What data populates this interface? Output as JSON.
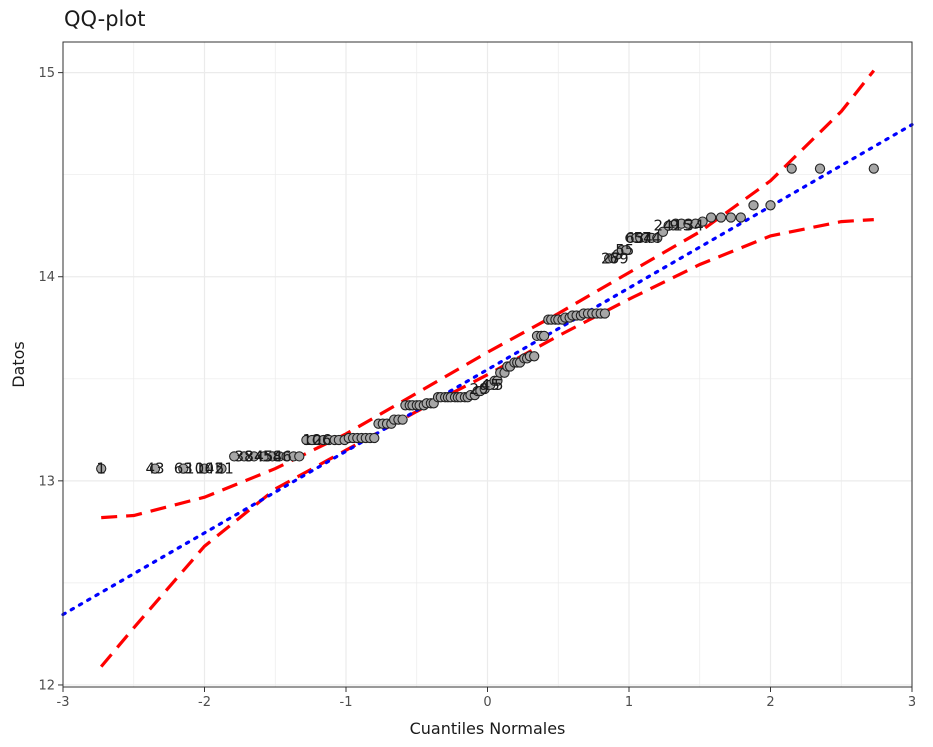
{
  "chart_data": {
    "type": "scatter",
    "title": "QQ-plot",
    "xlabel": "Cuantiles Normales",
    "ylabel": "Datos",
    "xlim": [
      -3,
      3
    ],
    "ylim": [
      11.99,
      15.15
    ],
    "x_ticks": [
      "-3",
      "-2",
      "-1",
      "0",
      "1",
      "2",
      "3"
    ],
    "y_ticks": [
      "12",
      "13",
      "14",
      "15"
    ],
    "grid": true,
    "points": [
      {
        "x": -2.73,
        "y": 13.06
      },
      {
        "x": -2.35,
        "y": 13.06
      },
      {
        "x": -2.15,
        "y": 13.06
      },
      {
        "x": -2.0,
        "y": 13.06
      },
      {
        "x": -1.88,
        "y": 13.06
      },
      {
        "x": -1.79,
        "y": 13.12
      },
      {
        "x": -1.72,
        "y": 13.12
      },
      {
        "x": -1.65,
        "y": 13.12
      },
      {
        "x": -1.58,
        "y": 13.12
      },
      {
        "x": -1.52,
        "y": 13.12
      },
      {
        "x": -1.47,
        "y": 13.12
      },
      {
        "x": -1.42,
        "y": 13.12
      },
      {
        "x": -1.37,
        "y": 13.12
      },
      {
        "x": -1.33,
        "y": 13.12
      },
      {
        "x": -1.28,
        "y": 13.2
      },
      {
        "x": -1.24,
        "y": 13.2
      },
      {
        "x": -1.2,
        "y": 13.2
      },
      {
        "x": -1.16,
        "y": 13.2
      },
      {
        "x": -1.12,
        "y": 13.2
      },
      {
        "x": -1.08,
        "y": 13.2
      },
      {
        "x": -1.05,
        "y": 13.2
      },
      {
        "x": -1.01,
        "y": 13.2
      },
      {
        "x": -0.98,
        "y": 13.21
      },
      {
        "x": -0.95,
        "y": 13.21
      },
      {
        "x": -0.92,
        "y": 13.21
      },
      {
        "x": -0.89,
        "y": 13.21
      },
      {
        "x": -0.86,
        "y": 13.21
      },
      {
        "x": -0.83,
        "y": 13.21
      },
      {
        "x": -0.8,
        "y": 13.21
      },
      {
        "x": -0.77,
        "y": 13.28
      },
      {
        "x": -0.74,
        "y": 13.28
      },
      {
        "x": -0.71,
        "y": 13.28
      },
      {
        "x": -0.68,
        "y": 13.28
      },
      {
        "x": -0.66,
        "y": 13.3
      },
      {
        "x": -0.63,
        "y": 13.3
      },
      {
        "x": -0.6,
        "y": 13.3
      },
      {
        "x": -0.58,
        "y": 13.37
      },
      {
        "x": -0.55,
        "y": 13.37
      },
      {
        "x": -0.53,
        "y": 13.37
      },
      {
        "x": -0.5,
        "y": 13.37
      },
      {
        "x": -0.48,
        "y": 13.37
      },
      {
        "x": -0.45,
        "y": 13.37
      },
      {
        "x": -0.43,
        "y": 13.38
      },
      {
        "x": -0.4,
        "y": 13.38
      },
      {
        "x": -0.38,
        "y": 13.38
      },
      {
        "x": -0.35,
        "y": 13.41
      },
      {
        "x": -0.33,
        "y": 13.41
      },
      {
        "x": -0.3,
        "y": 13.41
      },
      {
        "x": -0.28,
        "y": 13.41
      },
      {
        "x": -0.26,
        "y": 13.41
      },
      {
        "x": -0.23,
        "y": 13.41
      },
      {
        "x": -0.21,
        "y": 13.41
      },
      {
        "x": -0.19,
        "y": 13.41
      },
      {
        "x": -0.16,
        "y": 13.41
      },
      {
        "x": -0.14,
        "y": 13.41
      },
      {
        "x": -0.12,
        "y": 13.42
      },
      {
        "x": -0.09,
        "y": 13.42
      },
      {
        "x": -0.07,
        "y": 13.44
      },
      {
        "x": -0.05,
        "y": 13.44
      },
      {
        "x": -0.02,
        "y": 13.45
      },
      {
        "x": 0.0,
        "y": 13.47
      },
      {
        "x": 0.02,
        "y": 13.47
      },
      {
        "x": 0.05,
        "y": 13.49
      },
      {
        "x": 0.07,
        "y": 13.49
      },
      {
        "x": 0.09,
        "y": 13.53
      },
      {
        "x": 0.12,
        "y": 13.53
      },
      {
        "x": 0.14,
        "y": 13.56
      },
      {
        "x": 0.16,
        "y": 13.56
      },
      {
        "x": 0.19,
        "y": 13.58
      },
      {
        "x": 0.21,
        "y": 13.58
      },
      {
        "x": 0.23,
        "y": 13.58
      },
      {
        "x": 0.26,
        "y": 13.6
      },
      {
        "x": 0.28,
        "y": 13.6
      },
      {
        "x": 0.3,
        "y": 13.61
      },
      {
        "x": 0.33,
        "y": 13.61
      },
      {
        "x": 0.35,
        "y": 13.71
      },
      {
        "x": 0.38,
        "y": 13.71
      },
      {
        "x": 0.4,
        "y": 13.71
      },
      {
        "x": 0.43,
        "y": 13.79
      },
      {
        "x": 0.45,
        "y": 13.79
      },
      {
        "x": 0.48,
        "y": 13.79
      },
      {
        "x": 0.5,
        "y": 13.79
      },
      {
        "x": 0.53,
        "y": 13.79
      },
      {
        "x": 0.55,
        "y": 13.8
      },
      {
        "x": 0.58,
        "y": 13.8
      },
      {
        "x": 0.6,
        "y": 13.81
      },
      {
        "x": 0.63,
        "y": 13.81
      },
      {
        "x": 0.66,
        "y": 13.81
      },
      {
        "x": 0.68,
        "y": 13.82
      },
      {
        "x": 0.71,
        "y": 13.82
      },
      {
        "x": 0.74,
        "y": 13.82
      },
      {
        "x": 0.77,
        "y": 13.82
      },
      {
        "x": 0.8,
        "y": 13.82
      },
      {
        "x": 0.83,
        "y": 13.82
      },
      {
        "x": 0.86,
        "y": 14.09
      },
      {
        "x": 0.89,
        "y": 14.09
      },
      {
        "x": 0.92,
        "y": 14.11
      },
      {
        "x": 0.95,
        "y": 14.13
      },
      {
        "x": 0.98,
        "y": 14.13
      },
      {
        "x": 1.01,
        "y": 14.19
      },
      {
        "x": 1.05,
        "y": 14.19
      },
      {
        "x": 1.08,
        "y": 14.19
      },
      {
        "x": 1.12,
        "y": 14.19
      },
      {
        "x": 1.16,
        "y": 14.19
      },
      {
        "x": 1.2,
        "y": 14.19
      },
      {
        "x": 1.24,
        "y": 14.22
      },
      {
        "x": 1.28,
        "y": 14.25
      },
      {
        "x": 1.33,
        "y": 14.26
      },
      {
        "x": 1.37,
        "y": 14.26
      },
      {
        "x": 1.42,
        "y": 14.26
      },
      {
        "x": 1.47,
        "y": 14.26
      },
      {
        "x": 1.52,
        "y": 14.27
      },
      {
        "x": 1.58,
        "y": 14.29
      },
      {
        "x": 1.65,
        "y": 14.29
      },
      {
        "x": 1.72,
        "y": 14.29
      },
      {
        "x": 1.79,
        "y": 14.29
      },
      {
        "x": 1.88,
        "y": 14.35
      },
      {
        "x": 2.0,
        "y": 14.35
      },
      {
        "x": 2.15,
        "y": 14.53
      },
      {
        "x": 2.35,
        "y": 14.53
      },
      {
        "x": 2.73,
        "y": 14.53
      }
    ],
    "point_labels": [
      {
        "x": -2.73,
        "y": 13.06,
        "text": "1"
      },
      {
        "x": -2.35,
        "y": 13.06,
        "text": "43"
      },
      {
        "x": -2.15,
        "y": 13.06,
        "text": "63"
      },
      {
        "x": -2.07,
        "y": 13.06,
        "text": "10"
      },
      {
        "x": -2.0,
        "y": 13.06,
        "text": "10"
      },
      {
        "x": -1.93,
        "y": 13.06,
        "text": "42"
      },
      {
        "x": -1.86,
        "y": 13.06,
        "text": "51"
      },
      {
        "x": -1.72,
        "y": 13.12,
        "text": "38"
      },
      {
        "x": -1.65,
        "y": 13.12,
        "text": "34"
      },
      {
        "x": -1.58,
        "y": 13.12,
        "text": "45"
      },
      {
        "x": -1.52,
        "y": 13.12,
        "text": "58"
      },
      {
        "x": -1.45,
        "y": 13.12,
        "text": "46"
      },
      {
        "x": -1.24,
        "y": 13.2,
        "text": "10"
      },
      {
        "x": -1.17,
        "y": 13.2,
        "text": "26"
      },
      {
        "x": -0.06,
        "y": 13.45,
        "text": "29"
      },
      {
        "x": 0.02,
        "y": 13.47,
        "text": "45"
      },
      {
        "x": 0.08,
        "y": 13.47,
        "text": "5"
      },
      {
        "x": 0.87,
        "y": 14.09,
        "text": "27"
      },
      {
        "x": 0.93,
        "y": 14.09,
        "text": "69"
      },
      {
        "x": 0.97,
        "y": 14.13,
        "text": "55"
      },
      {
        "x": 1.04,
        "y": 14.19,
        "text": "63"
      },
      {
        "x": 1.1,
        "y": 14.19,
        "text": "54"
      },
      {
        "x": 1.16,
        "y": 14.19,
        "text": "74"
      },
      {
        "x": 1.24,
        "y": 14.25,
        "text": "24"
      },
      {
        "x": 1.32,
        "y": 14.25,
        "text": "9"
      },
      {
        "x": 1.38,
        "y": 14.25,
        "text": "15"
      },
      {
        "x": 1.46,
        "y": 14.25,
        "text": "34"
      }
    ],
    "reference_line": {
      "x": [
        -3,
        3
      ],
      "y": [
        12.345,
        14.745
      ]
    },
    "confidence_band": {
      "x": [
        -2.73,
        -2.5,
        -2.0,
        -1.5,
        -1.0,
        -0.5,
        0.0,
        0.5,
        1.0,
        1.5,
        2.0,
        2.5,
        2.73
      ],
      "upper": [
        12.82,
        12.83,
        12.92,
        13.06,
        13.23,
        13.43,
        13.63,
        13.82,
        14.02,
        14.22,
        14.47,
        14.81,
        15.01
      ],
      "lower": [
        12.09,
        12.28,
        12.68,
        12.96,
        13.15,
        13.34,
        13.52,
        13.71,
        13.89,
        14.06,
        14.2,
        14.27,
        14.28
      ]
    },
    "colors": {
      "points_fill": "#a6a6a6",
      "points_stroke": "#222222",
      "reference_line": "#0000ff",
      "confidence_band": "#ff0000",
      "grid": "#ebebeb",
      "panel_border": "#333333"
    }
  }
}
